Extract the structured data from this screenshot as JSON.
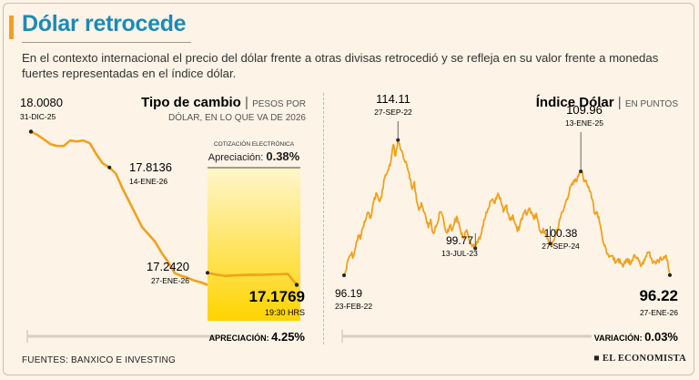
{
  "header": {
    "title": "Dólar retrocede",
    "intro": "En el contexto internacional el precio del dólar frente a otras divisas retrocedió y se refleja en su valor frente a monedas fuertes representadas en el índice dólar."
  },
  "footer": {
    "source": "FUENTES: BANXICO E INVESTING",
    "brand": "EL ECONOMISTA"
  },
  "colors": {
    "line": "#f0a21e",
    "title": "#1b8bb5",
    "highlight_top": "#fff6cc",
    "highlight_bottom": "#ffd400"
  },
  "chart_data": [
    {
      "type": "line",
      "title": "Tipo de cambio",
      "subtitle": "PESOS POR DÓLAR, EN LO QUE VA DE 2026",
      "subtitle_line1": "PESOS POR",
      "subtitle_line2": "DÓLAR, EN LO QUE VA DE 2026",
      "ylim": [
        17.15,
        18.03
      ],
      "x": [
        0,
        1,
        2,
        3,
        4,
        5,
        6,
        7,
        8,
        9,
        10,
        11,
        12,
        13,
        14,
        15,
        16,
        17,
        18,
        19,
        20,
        21,
        22,
        23,
        24,
        25,
        26,
        27
      ],
      "values": [
        18.008,
        17.99,
        17.965,
        17.94,
        17.93,
        17.93,
        17.96,
        17.955,
        17.96,
        17.945,
        17.885,
        17.835,
        17.8136,
        17.78,
        17.7,
        17.63,
        17.56,
        17.49,
        17.45,
        17.41,
        17.35,
        17.3,
        17.24,
        17.225,
        17.215,
        17.2,
        17.19,
        17.1769
      ],
      "start": {
        "value": "18.0080",
        "date": "31-DIC-25"
      },
      "annotations": [
        {
          "value": "17.8136",
          "date": "14-ENE-26"
        },
        {
          "value": "17.2420",
          "date": "27-ENE-26"
        }
      ],
      "highlight": {
        "label_top": "COTIZACIÓN ELECTRÓNICA",
        "label": "Apreciación:",
        "value": "0.38%",
        "after": [
          17.242,
          17.232,
          17.225,
          17.228,
          17.23,
          17.232,
          17.231,
          17.233,
          17.234,
          17.236,
          17.1769
        ],
        "close_value": "17.1769",
        "close_time": "19:30 HRS"
      },
      "summary_label": "APRECIACIÓN:",
      "summary_value": "4.25%"
    },
    {
      "type": "line",
      "title": "Índice Dólar",
      "subtitle": "EN PUNTOS",
      "ylim": [
        95,
        116
      ],
      "series": [
        {
          "name": "Índice Dólar",
          "values": [
            96.19,
            97.0,
            98.5,
            99.0,
            98.7,
            100.0,
            101.5,
            101.0,
            102.5,
            103.3,
            104.5,
            103.8,
            104.8,
            106.5,
            107.0,
            106.0,
            106.5,
            108.8,
            109.5,
            110.2,
            111.3,
            113.5,
            112.0,
            114.11,
            113.0,
            112.4,
            111.2,
            110.5,
            109.0,
            107.6,
            108.6,
            106.0,
            104.8,
            105.8,
            104.6,
            103.7,
            102.5,
            103.6,
            101.8,
            102.7,
            103.2,
            104.6,
            104.1,
            102.5,
            101.8,
            102.7,
            102.1,
            103.0,
            104.0,
            103.2,
            101.6,
            101.2,
            102.0,
            101.4,
            100.5,
            100.2,
            99.77,
            100.5,
            101.0,
            102.6,
            103.6,
            104.5,
            105.3,
            106.2,
            105.8,
            106.3,
            106.8,
            105.8,
            104.6,
            105.4,
            104.4,
            103.5,
            104.2,
            103.0,
            102.0,
            102.8,
            103.6,
            104.6,
            104.2,
            105.1,
            104.6,
            103.6,
            104.4,
            103.0,
            101.8,
            102.4,
            101.6,
            101.0,
            100.38,
            100.6,
            101.4,
            102.2,
            103.6,
            104.6,
            105.3,
            106.3,
            107.1,
            108.2,
            108.8,
            108.6,
            109.3,
            109.96,
            109.2,
            108.6,
            107.9,
            107.3,
            106.2,
            104.3,
            104.6,
            103.2,
            101.6,
            100.1,
            99.2,
            98.6,
            98.8,
            98.2,
            97.9,
            98.4,
            97.8,
            97.3,
            97.8,
            98.4,
            97.6,
            98.1,
            98.9,
            98.4,
            98.1,
            97.6,
            98.3,
            98.7,
            99.2,
            98.5,
            98.0,
            97.7,
            98.1,
            98.6,
            98.3,
            98.7,
            98.2,
            96.22
          ]
        }
      ],
      "annotations": [
        {
          "value": "96.19",
          "date": "23-FEB-22"
        },
        {
          "value": "114.11",
          "date": "27-SEP-22"
        },
        {
          "value": "99.77",
          "date": "13-JUL-23"
        },
        {
          "value": "100.38",
          "date": "27-SEP-24"
        },
        {
          "value": "109.96",
          "date": "13-ENE-25"
        },
        {
          "value": "96.22",
          "date": "27-ENE-26"
        }
      ],
      "summary_label": "VARIACIÓN:",
      "summary_value": "0.03%"
    }
  ]
}
